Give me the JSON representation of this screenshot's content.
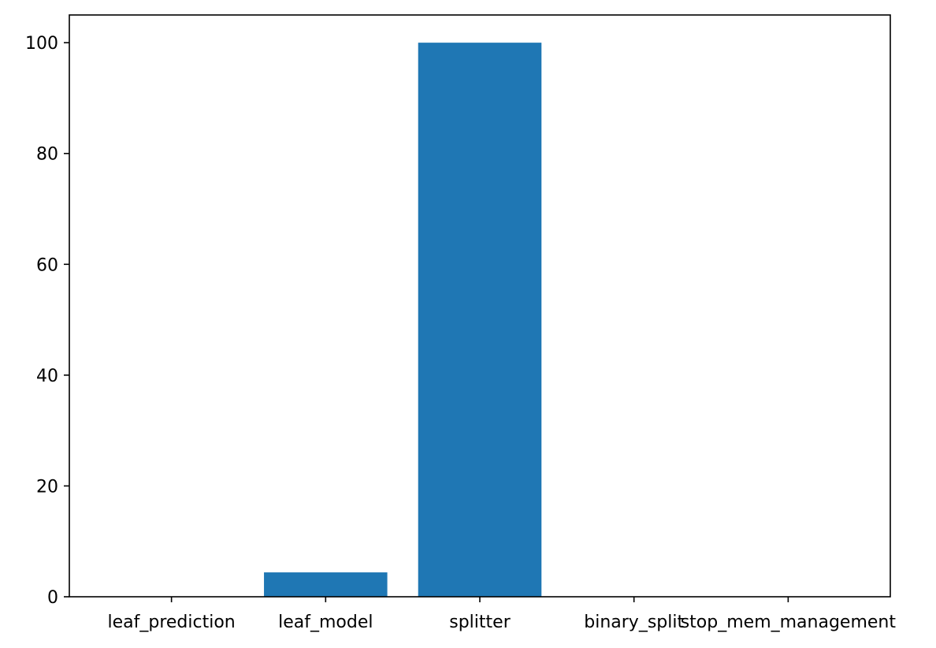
{
  "chart_data": {
    "type": "bar",
    "categories": [
      "leaf_prediction",
      "leaf_model",
      "splitter",
      "binary_split",
      "stop_mem_management"
    ],
    "values": [
      0,
      4.4,
      100,
      0,
      0
    ],
    "title": "",
    "xlabel": "",
    "ylabel": "",
    "ylim": [
      0,
      105
    ],
    "yticks": [
      0,
      20,
      40,
      60,
      80,
      100
    ],
    "grid": false,
    "legend": "none",
    "bar_color": "#1f77b4"
  }
}
